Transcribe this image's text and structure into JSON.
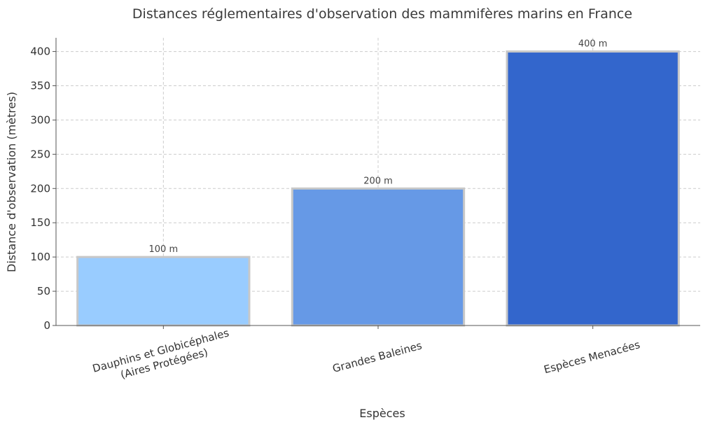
{
  "chart_data": {
    "type": "bar",
    "title": "Distances réglementaires d'observation des mammifères marins en France",
    "xlabel": "Espèces",
    "ylabel": "Distance d'observation (mètres)",
    "categories": [
      [
        "Dauphins et Globicéphales",
        "(Aires Protégées)"
      ],
      [
        "Grandes Baleines"
      ],
      [
        "Espèces Menacées"
      ]
    ],
    "values": [
      100,
      200,
      400
    ],
    "bar_labels": [
      "100 m",
      "200 m",
      "400 m"
    ],
    "colors": [
      "#99ccff",
      "#6699e6",
      "#3366cc"
    ],
    "ylim": [
      0,
      420
    ],
    "yticks": [
      0,
      50,
      100,
      150,
      200,
      250,
      300,
      350,
      400
    ],
    "grid": true
  }
}
